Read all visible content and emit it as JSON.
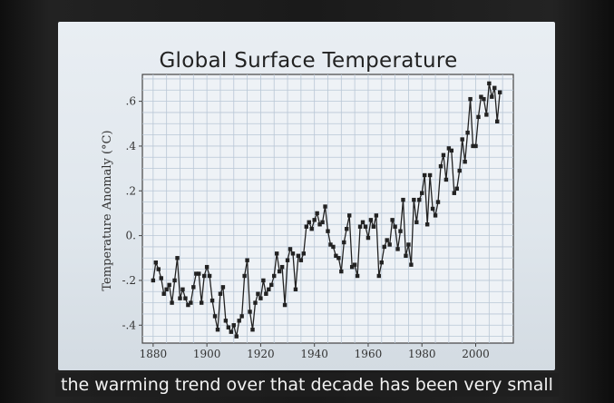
{
  "caption": {
    "text": "the warming trend over that decade has been very small"
  },
  "chart_data": {
    "type": "line",
    "title": "Global Surface Temperature",
    "xlabel": "",
    "ylabel": "Temperature Anomaly (°C)",
    "xlim": [
      1876,
      2014
    ],
    "ylim": [
      -0.48,
      0.72
    ],
    "x_ticks": [
      1880,
      1900,
      1920,
      1940,
      1960,
      1980,
      2000
    ],
    "x_tick_labels": [
      "1880",
      "1900",
      "1920",
      "1940",
      "1960",
      "1980",
      "2000"
    ],
    "y_ticks": [
      -0.4,
      -0.2,
      0.0,
      0.2,
      0.4,
      0.6
    ],
    "y_tick_labels": [
      "-.4",
      "-.2",
      "0.",
      ".2",
      ".4",
      ".6"
    ],
    "grid": true,
    "marker": "square",
    "series": [
      {
        "name": "Temperature Anomaly",
        "color": "#222222",
        "x": [
          1880,
          1881,
          1882,
          1883,
          1884,
          1885,
          1886,
          1887,
          1888,
          1889,
          1890,
          1891,
          1892,
          1893,
          1894,
          1895,
          1896,
          1897,
          1898,
          1899,
          1900,
          1901,
          1902,
          1903,
          1904,
          1905,
          1906,
          1907,
          1908,
          1909,
          1910,
          1911,
          1912,
          1913,
          1914,
          1915,
          1916,
          1917,
          1918,
          1919,
          1920,
          1921,
          1922,
          1923,
          1924,
          1925,
          1926,
          1927,
          1928,
          1929,
          1930,
          1931,
          1932,
          1933,
          1934,
          1935,
          1936,
          1937,
          1938,
          1939,
          1940,
          1941,
          1942,
          1943,
          1944,
          1945,
          1946,
          1947,
          1948,
          1949,
          1950,
          1951,
          1952,
          1953,
          1954,
          1955,
          1956,
          1957,
          1958,
          1959,
          1960,
          1961,
          1962,
          1963,
          1964,
          1965,
          1966,
          1967,
          1968,
          1969,
          1970,
          1971,
          1972,
          1973,
          1974,
          1975,
          1976,
          1977,
          1978,
          1979,
          1980,
          1981,
          1982,
          1983,
          1984,
          1985,
          1986,
          1987,
          1988,
          1989,
          1990,
          1991,
          1992,
          1993,
          1994,
          1995,
          1996,
          1997,
          1998,
          1999,
          2000,
          2001,
          2002,
          2003,
          2004,
          2005,
          2006,
          2007,
          2008,
          2009
        ],
        "values": [
          -0.2,
          -0.12,
          -0.15,
          -0.19,
          -0.26,
          -0.24,
          -0.22,
          -0.3,
          -0.2,
          -0.1,
          -0.28,
          -0.24,
          -0.28,
          -0.31,
          -0.3,
          -0.23,
          -0.17,
          -0.17,
          -0.3,
          -0.18,
          -0.14,
          -0.18,
          -0.29,
          -0.36,
          -0.42,
          -0.26,
          -0.23,
          -0.38,
          -0.41,
          -0.43,
          -0.4,
          -0.45,
          -0.38,
          -0.36,
          -0.18,
          -0.11,
          -0.34,
          -0.42,
          -0.3,
          -0.26,
          -0.28,
          -0.2,
          -0.26,
          -0.24,
          -0.22,
          -0.18,
          -0.08,
          -0.16,
          -0.14,
          -0.31,
          -0.11,
          -0.06,
          -0.08,
          -0.24,
          -0.09,
          -0.11,
          -0.08,
          0.04,
          0.06,
          0.03,
          0.07,
          0.1,
          0.05,
          0.06,
          0.13,
          0.02,
          -0.04,
          -0.05,
          -0.09,
          -0.1,
          -0.16,
          -0.03,
          0.03,
          0.09,
          -0.14,
          -0.13,
          -0.18,
          0.04,
          0.06,
          0.04,
          -0.01,
          0.07,
          0.04,
          0.09,
          -0.18,
          -0.12,
          -0.05,
          -0.02,
          -0.04,
          0.07,
          0.04,
          -0.06,
          0.02,
          0.16,
          -0.09,
          -0.04,
          -0.13,
          0.16,
          0.06,
          0.16,
          0.19,
          0.27,
          0.05,
          0.27,
          0.12,
          0.09,
          0.15,
          0.31,
          0.36,
          0.25,
          0.39,
          0.38,
          0.19,
          0.21,
          0.29,
          0.43,
          0.33,
          0.46,
          0.61,
          0.4,
          0.4,
          0.53,
          0.62,
          0.61,
          0.54,
          0.68,
          0.62,
          0.66,
          0.51,
          0.64
        ]
      }
    ]
  }
}
